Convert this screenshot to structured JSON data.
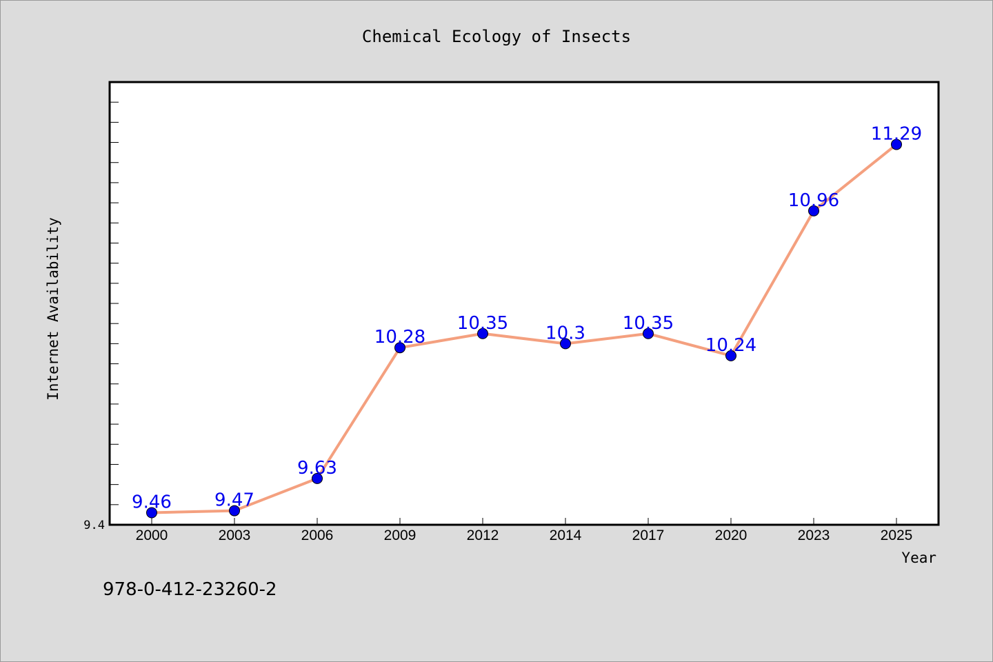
{
  "chart_data": {
    "type": "line",
    "title": "Chemical Ecology of Insects",
    "xlabel": "Year",
    "ylabel": "Internet Availability",
    "categories": [
      "2000",
      "2003",
      "2006",
      "2009",
      "2012",
      "2014",
      "2017",
      "2020",
      "2023",
      "2025"
    ],
    "series": [
      {
        "values": [
          9.46,
          9.47,
          9.63,
          10.28,
          10.35,
          10.3,
          10.35,
          10.24,
          10.96,
          11.29
        ],
        "labels": [
          "9.46",
          "9.47",
          "9.63",
          "10.28",
          "10.35",
          "10.3",
          "10.35",
          "10.24",
          "10.96",
          "11.29"
        ]
      }
    ],
    "ylim": [
      9.4,
      11.6
    ],
    "y_tick_labels": [
      "9.4"
    ],
    "grid": false,
    "line_color": "#f4a07f",
    "marker_color": "#0000ee",
    "label_color": "#0000ee"
  },
  "footer_text": "978-0-412-23260-2"
}
